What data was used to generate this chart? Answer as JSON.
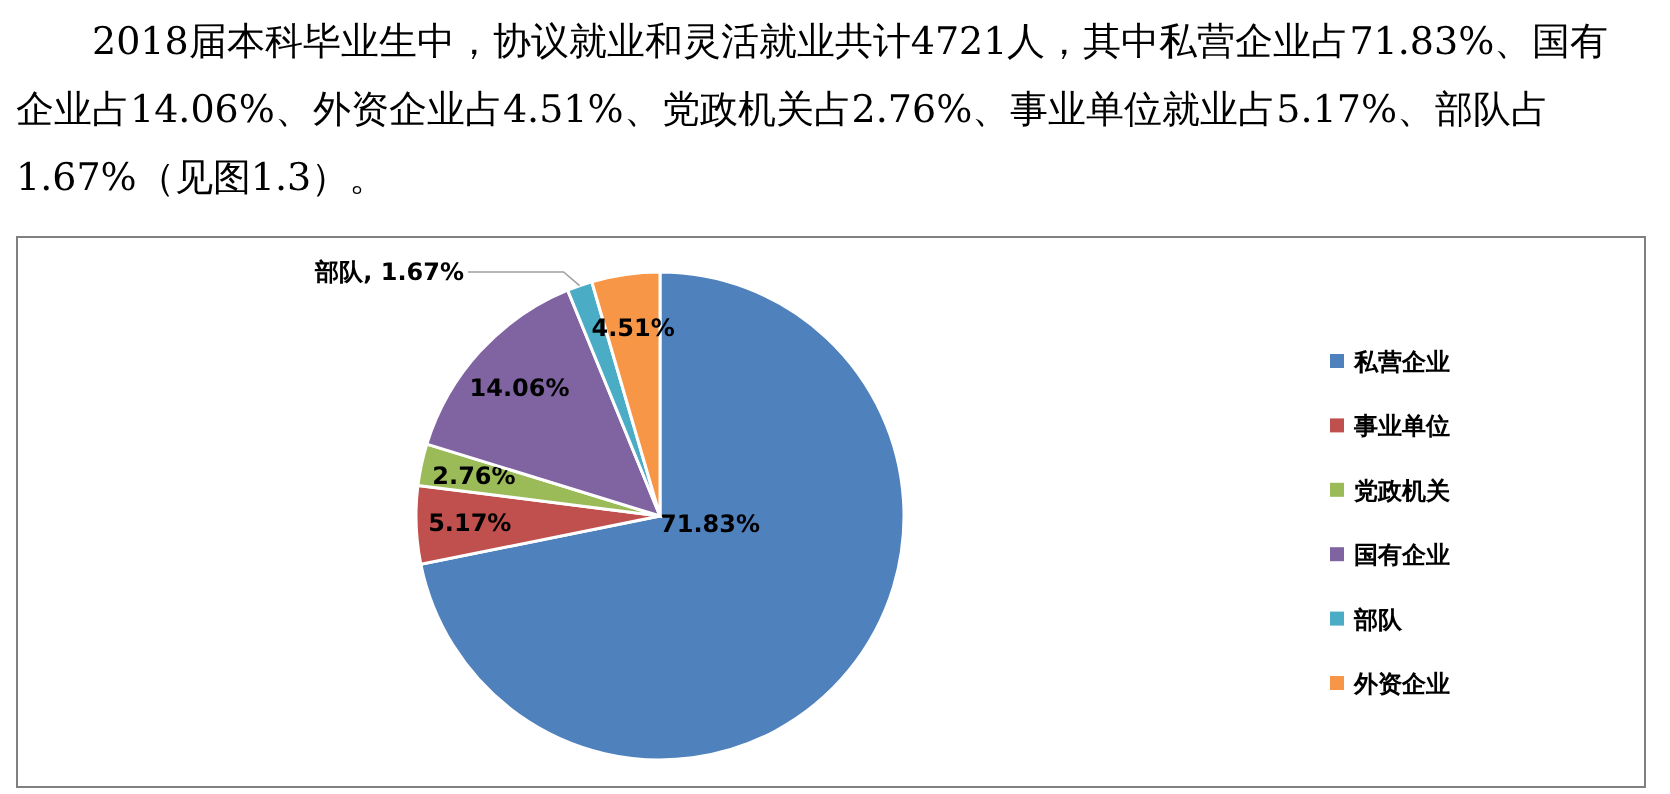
{
  "chart_data": {
    "type": "pie",
    "title": "2018届本科毕业生中，协议就业和灵活就业共计4721人，其中私营企业占71.83%、国有企业占14.06%、外资企业占4.51%、党政机关占2.76%、事业单位就业占5.17%、部队占1.67%（见图1.3）。",
    "categories": [
      "私营企业",
      "事业单位",
      "党政机关",
      "国有企业",
      "部队",
      "外资企业"
    ],
    "values": [
      71.83,
      5.17,
      2.76,
      14.06,
      1.67,
      4.51
    ],
    "colors": [
      "#4f81bd",
      "#c0504d",
      "#9bbb59",
      "#8064a2",
      "#4bacc6",
      "#f79646"
    ],
    "value_labels": [
      "71.83%",
      "5.17%",
      "2.76%",
      "14.06%",
      "部队, 1.67%",
      "4.51%"
    ],
    "legend": "right"
  }
}
